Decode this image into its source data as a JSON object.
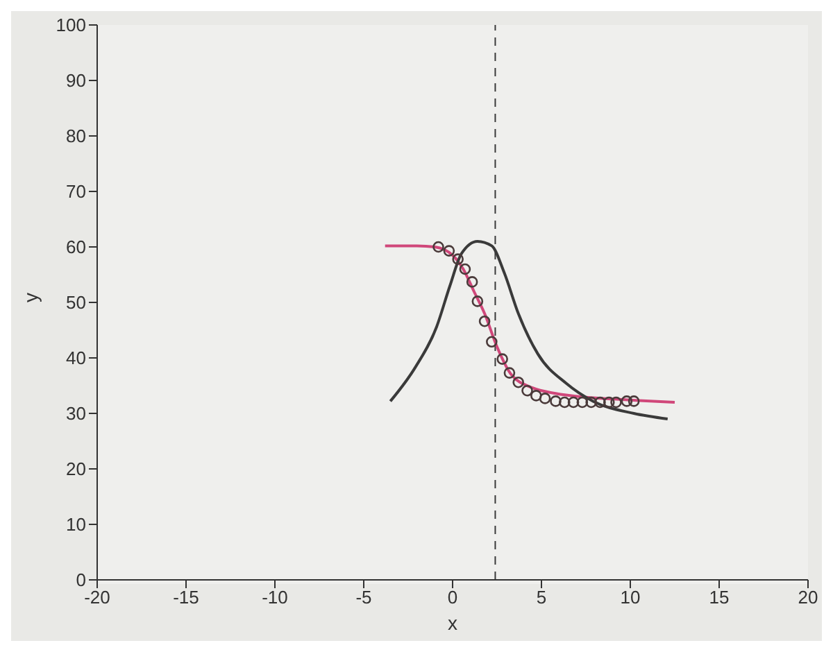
{
  "chart_data": {
    "type": "line",
    "xlabel": "x",
    "ylabel": "y",
    "xlim": [
      -20,
      20
    ],
    "xticks": [
      -20,
      -15,
      -10,
      -5,
      0,
      5,
      10,
      15,
      20
    ],
    "ylim": [
      0,
      100
    ],
    "yticks": [
      0,
      10,
      20,
      30,
      40,
      50,
      60,
      70,
      80,
      90,
      100
    ],
    "grid": false,
    "series": [
      {
        "color": "#d0477a",
        "x": [
          -3.8,
          -2,
          -1,
          0,
          0.6,
          1.2,
          1.8,
          2.5,
          3.3,
          4.5,
          5.8,
          7.2,
          9,
          10.5,
          12.5
        ],
        "values": [
          60.2,
          60.2,
          60,
          58.5,
          56,
          52,
          48,
          42,
          37,
          34.6,
          33.6,
          33,
          32.6,
          32.3,
          32
        ]
      },
      {
        "color": "#3a3a3a",
        "x": [
          -3.5,
          -2.1,
          -0.9,
          -0.15,
          0.5,
          1.4,
          2.2,
          2.9,
          3.7,
          4.8,
          6.4,
          7.9,
          10.2,
          12.1
        ],
        "values": [
          32.2,
          38.3,
          45.6,
          53,
          58.8,
          61,
          60.2,
          55.4,
          48,
          40.7,
          35.4,
          32.2,
          30,
          29
        ]
      },
      {
        "type": "scatter",
        "marker": "circle",
        "color": "#4a3a3a",
        "x": [
          -0.8,
          -0.2,
          0.3,
          0.7,
          1.1,
          1.4,
          1.8,
          2.2,
          2.8,
          3.2,
          3.7,
          4.2,
          4.7,
          5.2,
          5.8,
          6.3,
          6.8,
          7.3,
          7.8,
          8.3,
          8.8,
          9.2,
          9.8,
          10.2
        ],
        "values": [
          60,
          59.3,
          57.8,
          56,
          53.7,
          50.2,
          46.6,
          42.9,
          39.8,
          37.3,
          35.6,
          34.1,
          33.2,
          32.7,
          32.2,
          32,
          32,
          32,
          32,
          32,
          32,
          32,
          32.2,
          32.2
        ]
      }
    ],
    "ref_lines": [
      {
        "axis": "x",
        "value": 2.4,
        "color": "#3a3a3a",
        "line_style": "dashed"
      }
    ]
  }
}
